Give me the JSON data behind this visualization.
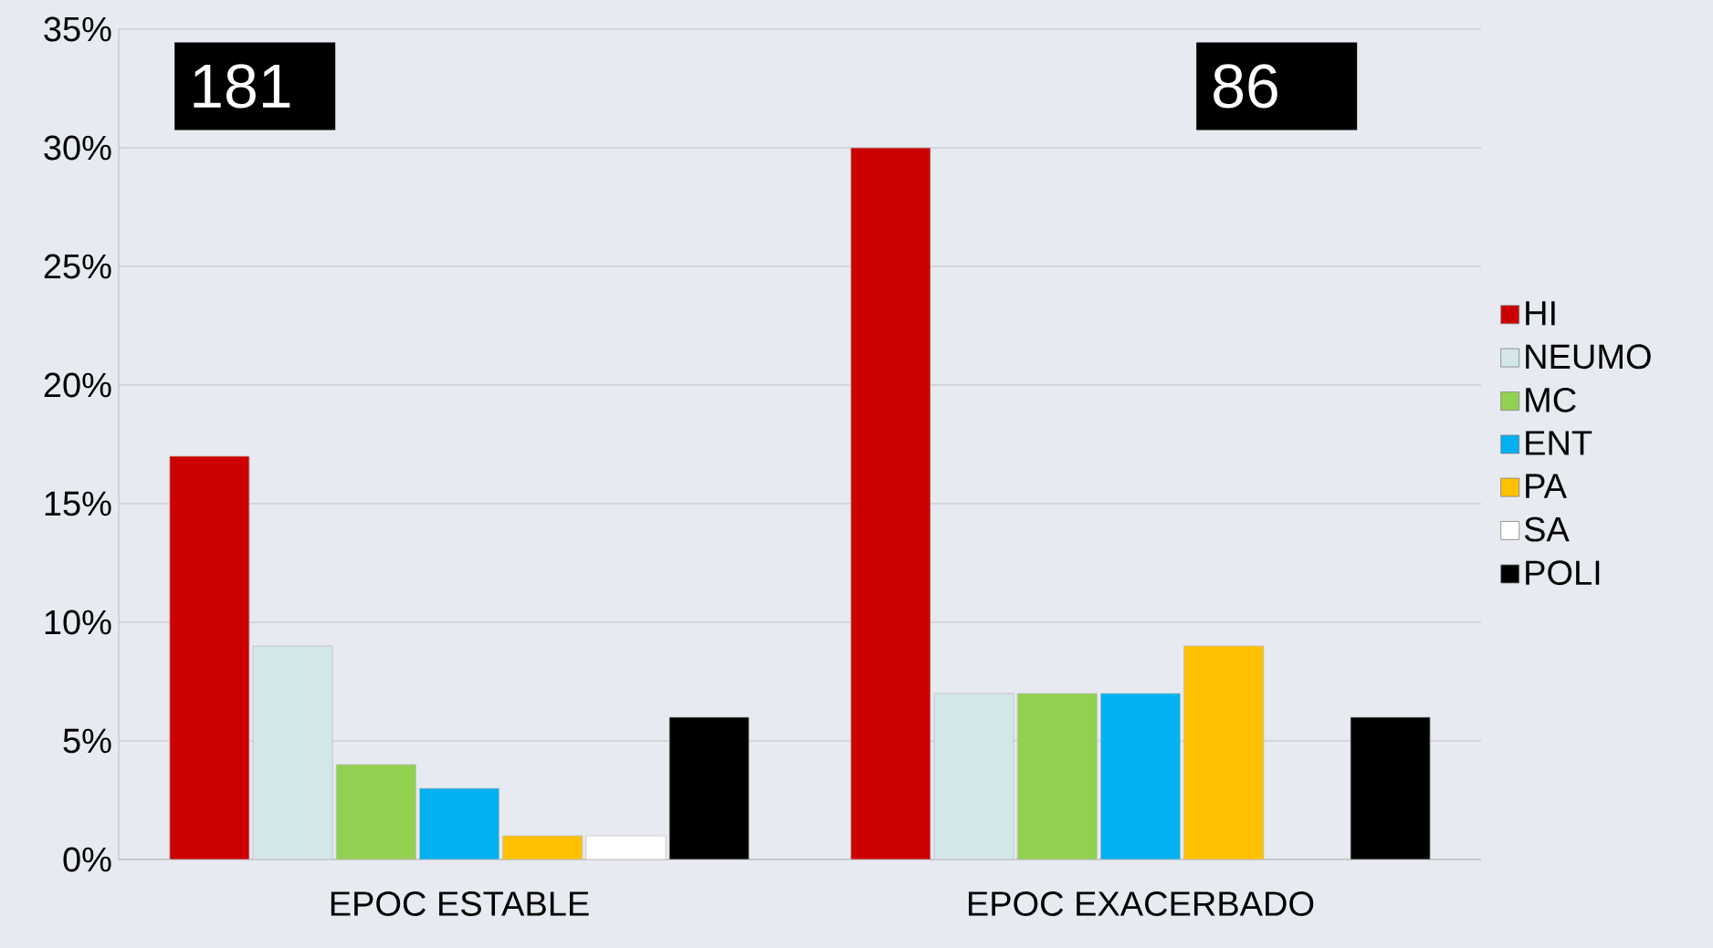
{
  "chart_data": {
    "type": "bar",
    "categories": [
      "EPOC ESTABLE",
      "EPOC EXACERBADO"
    ],
    "series": [
      {
        "name": "HI",
        "color": "#cc0000",
        "values": [
          17,
          30
        ]
      },
      {
        "name": "NEUMO",
        "color": "#d3e6ea",
        "values": [
          9,
          7
        ]
      },
      {
        "name": "MC",
        "color": "#92d050",
        "values": [
          4,
          7
        ]
      },
      {
        "name": "ENT",
        "color": "#00b0f0",
        "values": [
          3,
          7
        ]
      },
      {
        "name": "PA",
        "color": "#ffc000",
        "values": [
          1,
          9
        ]
      },
      {
        "name": "SA",
        "color": "#ffffff",
        "values": [
          1,
          null
        ]
      },
      {
        "name": "POLI",
        "color": "#000000",
        "values": [
          6,
          6
        ]
      }
    ],
    "annotations": [
      "181",
      "86"
    ],
    "ylim": [
      0,
      35
    ],
    "yticks": [
      {
        "value": 0,
        "label": "0%"
      },
      {
        "value": 5,
        "label": "5%"
      },
      {
        "value": 10,
        "label": "10%"
      },
      {
        "value": 15,
        "label": "15%"
      },
      {
        "value": 20,
        "label": "20%"
      },
      {
        "value": 25,
        "label": "25%"
      },
      {
        "value": 30,
        "label": "30%"
      },
      {
        "value": 35,
        "label": "35%"
      }
    ],
    "grid": "y",
    "legend": "right"
  }
}
